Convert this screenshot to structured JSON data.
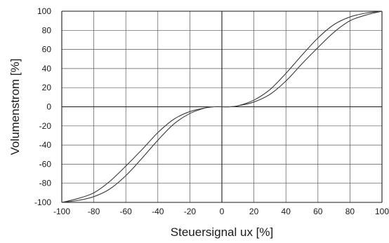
{
  "chart_data": {
    "type": "line",
    "title": "",
    "xlabel": "Steuersignal ux [%]",
    "ylabel": "Volumenstrom [%]",
    "xlim": [
      -100,
      100
    ],
    "ylim": [
      -100,
      100
    ],
    "x_ticks": [
      -100,
      -80,
      -60,
      -40,
      -20,
      0,
      20,
      40,
      60,
      80,
      100
    ],
    "y_ticks": [
      100,
      80,
      60,
      40,
      20,
      0,
      -20,
      -40,
      -60,
      -80,
      -100
    ],
    "grid": true,
    "series": [
      {
        "x": [
          -100,
          -90,
          -80,
          -70,
          -60,
          -50,
          -40,
          -30,
          -20,
          -10,
          -5,
          0,
          5,
          10,
          20,
          30,
          40,
          50,
          60,
          70,
          80,
          90,
          100
        ],
        "y": [
          -100,
          -96,
          -90,
          -78,
          -62,
          -45,
          -27,
          -13,
          -5,
          -1,
          0,
          0,
          0,
          1,
          5,
          13,
          27,
          45,
          62,
          78,
          90,
          96,
          100
        ]
      },
      {
        "x": [
          -100,
          -90,
          -80,
          -70,
          -60,
          -50,
          -40,
          -30,
          -20,
          -10,
          -5,
          0,
          5,
          10,
          20,
          30,
          40,
          50,
          60,
          70,
          80,
          90,
          100
        ],
        "y": [
          -100,
          -98,
          -94,
          -86,
          -72,
          -54,
          -35,
          -18,
          -7,
          -1,
          0,
          0,
          0,
          1,
          7,
          18,
          35,
          54,
          72,
          86,
          94,
          98,
          100
        ]
      }
    ],
    "colors": {
      "line": "#3a3a3a",
      "grid": "#555555",
      "axis": "#1a1a1a"
    }
  }
}
